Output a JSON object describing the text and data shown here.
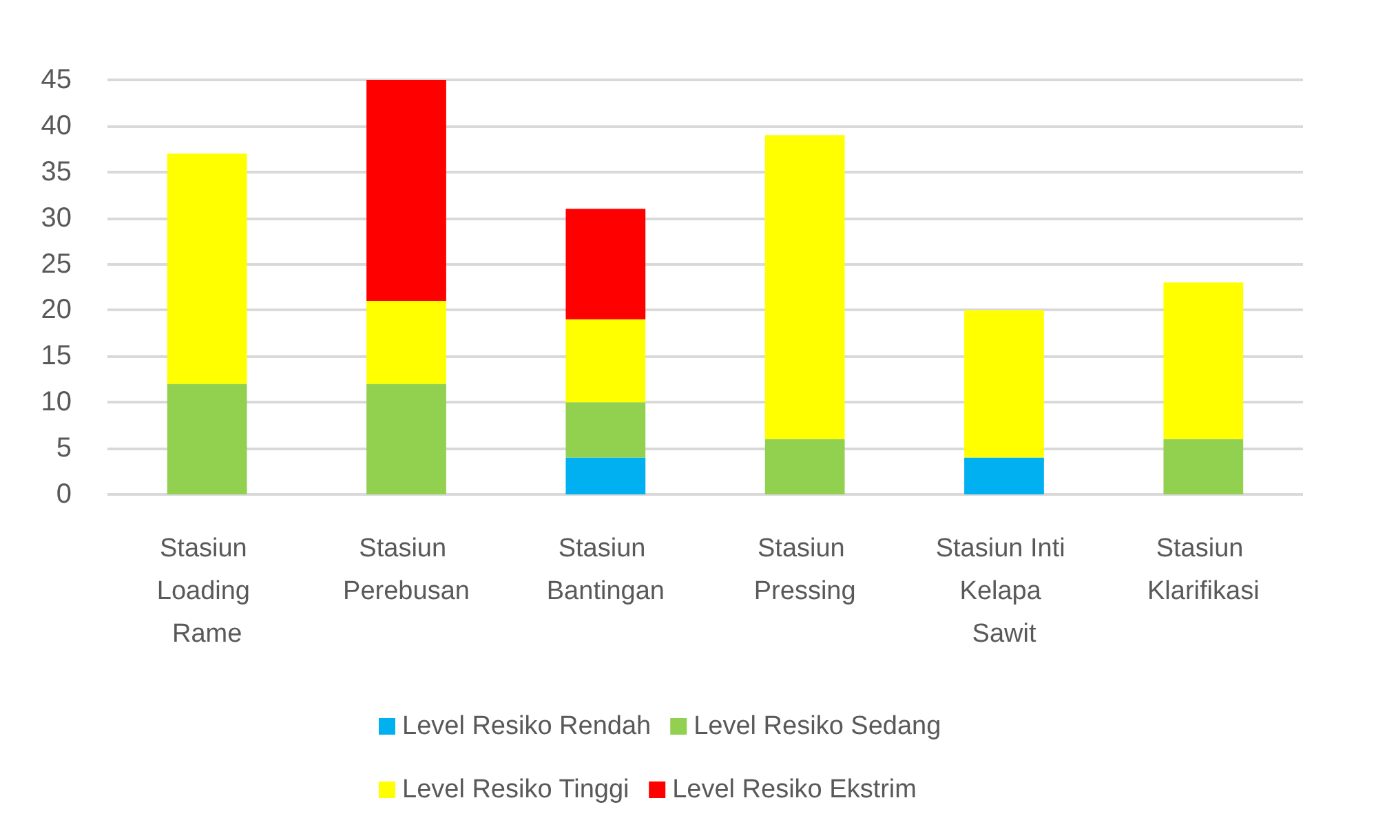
{
  "chart_data": {
    "type": "bar",
    "stacked": true,
    "categories": [
      "Stasiun Loading Rame",
      "Stasiun Perebusan",
      "Stasiun Bantingan",
      "Stasiun Pressing",
      "Stasiun Inti Kelapa Sawit",
      "Stasiun Klarifikasi"
    ],
    "series": [
      {
        "name": "Level Resiko Rendah",
        "color": "#00b0f0",
        "values": [
          0,
          0,
          4,
          0,
          4,
          0
        ]
      },
      {
        "name": "Level Resiko Sedang",
        "color": "#92d050",
        "values": [
          12,
          12,
          6,
          6,
          0,
          6
        ]
      },
      {
        "name": "Level Resiko Tinggi",
        "color": "#ffff00",
        "values": [
          25,
          9,
          9,
          33,
          16,
          17
        ]
      },
      {
        "name": "Level Resiko Ekstrim",
        "color": "#ff0000",
        "values": [
          0,
          24,
          12,
          0,
          0,
          0
        ]
      }
    ],
    "ylim": [
      0,
      45
    ],
    "yticks": [
      0,
      5,
      10,
      15,
      20,
      25,
      30,
      35,
      40,
      45
    ],
    "grid": "y",
    "legend": "bottom"
  }
}
